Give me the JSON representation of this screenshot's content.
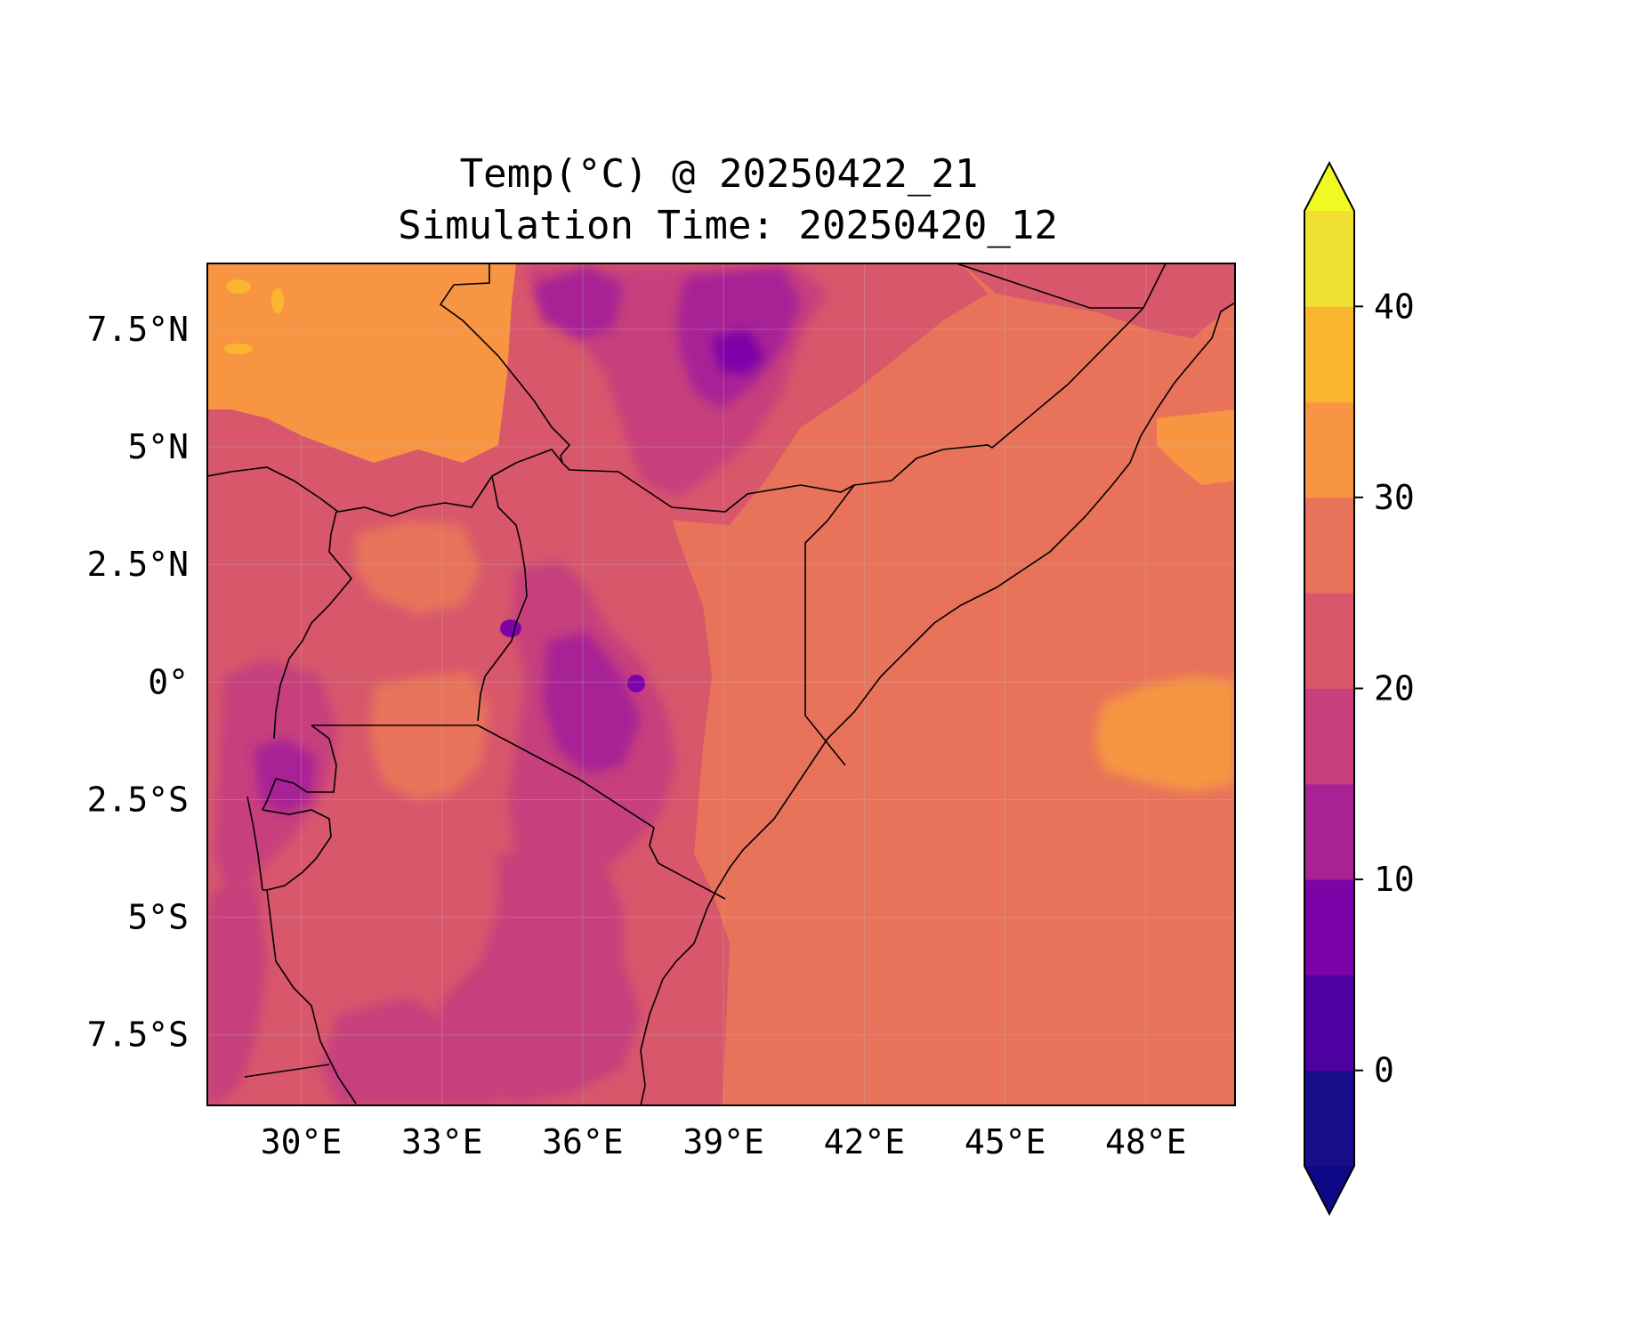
{
  "chart_data": {
    "type": "heatmap",
    "title": "Temp(°C) @ 20250422_21",
    "subtitle": "Simulation Time: 20250420_12",
    "xlabel": "",
    "ylabel": "",
    "x_ticks": [
      "30°E",
      "33°E",
      "36°E",
      "39°E",
      "42°E",
      "45°E",
      "48°E"
    ],
    "x_tick_values": [
      30,
      33,
      36,
      39,
      42,
      45,
      48
    ],
    "y_ticks": [
      "7.5°N",
      "5°N",
      "2.5°N",
      "0°",
      "2.5°S",
      "5°S",
      "7.5°S"
    ],
    "y_tick_values": [
      7.5,
      5,
      2.5,
      0,
      -2.5,
      -5,
      -7.5
    ],
    "xlim": [
      28.0,
      49.9
    ],
    "ylim": [
      -9.0,
      8.9
    ],
    "grid": true,
    "colorbar": {
      "levels": [
        -5,
        0,
        5,
        10,
        15,
        20,
        25,
        30,
        35,
        40,
        45
      ],
      "ticks": [
        "0",
        "10",
        "20",
        "30",
        "40"
      ],
      "tick_values": [
        0,
        10,
        20,
        30,
        40
      ],
      "extend": "both",
      "colors": [
        "#170d8a",
        "#4e02a1",
        "#7d03a8",
        "#a82296",
        "#c73f7d",
        "#d8576b",
        "#e8735a",
        "#f79543",
        "#fbb630",
        "#f0e032"
      ],
      "under_color": "#0d0887",
      "over_color": "#f0f921"
    }
  }
}
